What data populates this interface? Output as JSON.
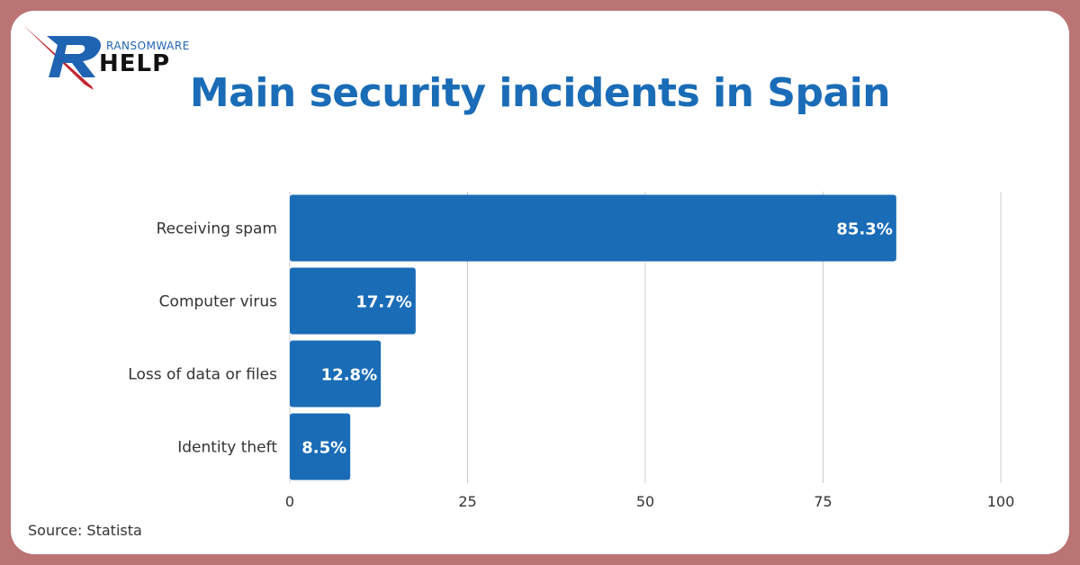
{
  "branding": {
    "logo_small_text": "RANSOMWARE",
    "logo_big_text": "HELP",
    "colors": {
      "blue": "#1a6cb7",
      "red": "#c0282e"
    }
  },
  "chart_title": "Main security incidents in Spain",
  "source": "Source: Statista",
  "chart_data": {
    "type": "bar",
    "orientation": "horizontal",
    "categories": [
      "Receiving spam",
      "Computer virus",
      "Loss of data or files",
      "Identity theft"
    ],
    "values": [
      85.3,
      17.7,
      12.8,
      8.5
    ],
    "value_labels": [
      "85.3%",
      "17.7%",
      "12.8%",
      "8.5%"
    ],
    "title": "Main security incidents in Spain",
    "xlabel": "",
    "ylabel": "",
    "xlim": [
      0,
      100
    ],
    "x_ticks": [
      "0",
      "25",
      "50",
      "75",
      "100"
    ],
    "grid": true,
    "bar_color": "#1a6cb7",
    "background_color": "#b97473"
  }
}
